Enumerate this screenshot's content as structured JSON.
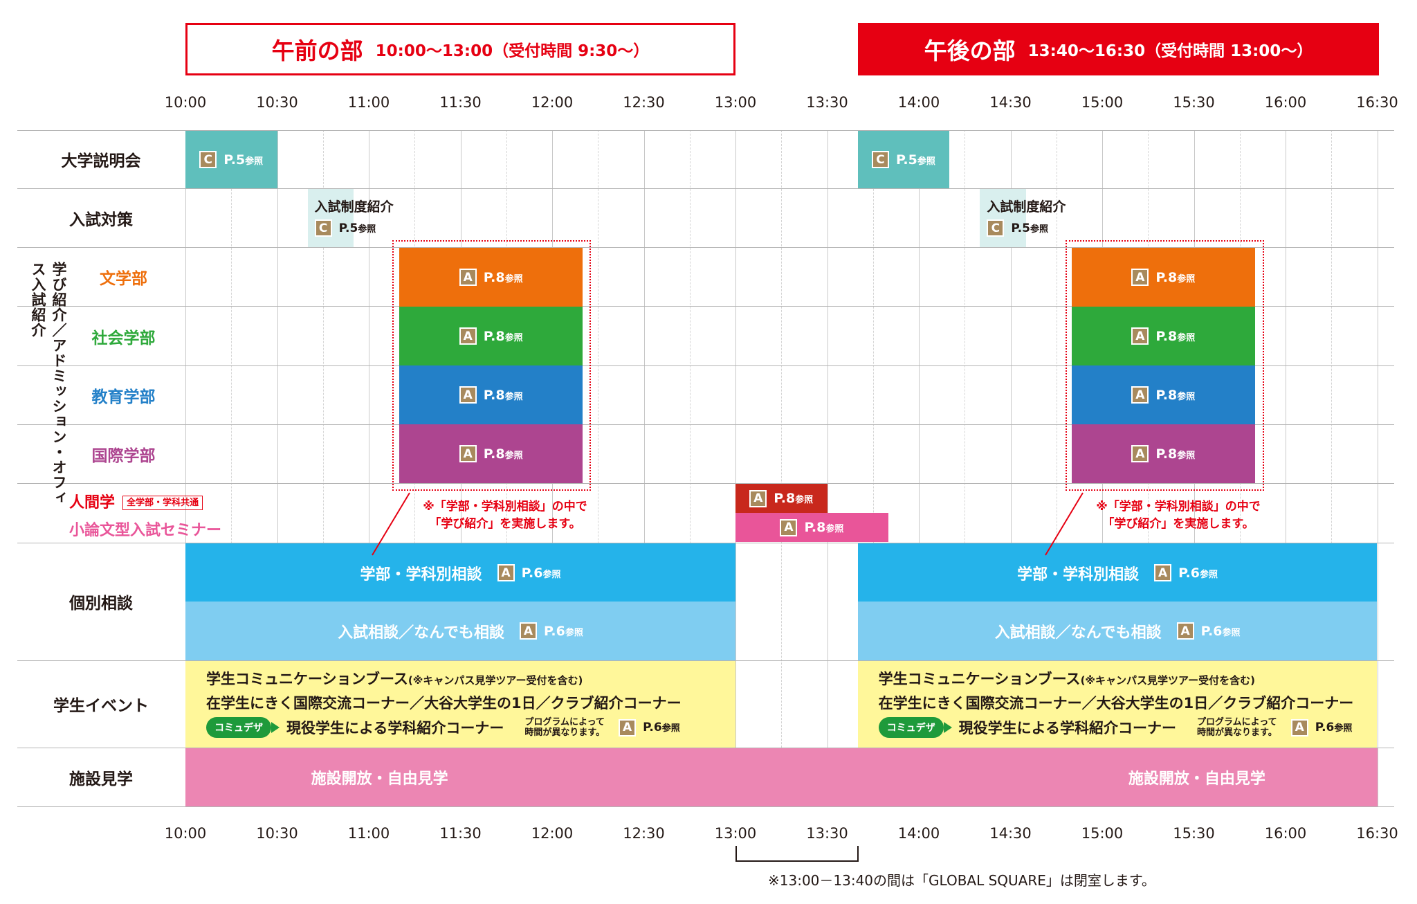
{
  "sessions": {
    "morning": {
      "title": "午前の部",
      "detail": "10:00〜13:00（受付時間 9:30〜）"
    },
    "afternoon": {
      "title": "午後の部",
      "detail": "13:40〜16:30（受付時間 13:00〜）"
    }
  },
  "time_ticks": [
    "10:00",
    "10:30",
    "11:00",
    "11:30",
    "12:00",
    "12:30",
    "13:00",
    "13:30",
    "14:00",
    "14:30",
    "15:00",
    "15:30",
    "16:00",
    "16:30"
  ],
  "row_labels": {
    "orientation": "大学説明会",
    "admission": "入試対策",
    "literature": "文学部",
    "social": "社会学部",
    "education": "教育学部",
    "international": "国際学部",
    "human": "人間学",
    "human_tag": "全学部・学科共通",
    "essay": "小論文型入試セミナー",
    "consult": "個別相談",
    "student_event": "学生イベント",
    "facility": "施設見学",
    "vertical_group": "学び紹介／アドミッション・オフィス入試紹介"
  },
  "colors": {
    "red": "#e60012",
    "teal": "#5fbfbc",
    "teal_light": "#d9efee",
    "orange": "#ee6f0c",
    "green": "#2ea93b",
    "blue": "#2380c8",
    "purple": "#ad4590",
    "dark_red": "#c8281c",
    "pink": "#e95599",
    "sky": "#25b3ea",
    "sky_light": "#7fcdf1",
    "yellow": "#fff79a",
    "facility_pink": "#ec86b3",
    "badge": "#a88a5d"
  },
  "badges": {
    "C": "C",
    "A": "A"
  },
  "refs": {
    "p5": "P.5",
    "p6": "P.6",
    "p8": "P.8",
    "suffix": "参照"
  },
  "admission_block_title": "入試制度紹介",
  "faculty_note": {
    "line1": "※「学部・学科別相談」の中で",
    "line2": "「学び紹介」を実施します。"
  },
  "consult": {
    "dept": "学部・学科別相談",
    "general": "入試相談／なんでも相談"
  },
  "student_event": {
    "line1": "学生コミュニケーションブース",
    "line1_note": "(※キャンパス見学ツアー受付を含む)",
    "line2": "在学生にきく国際交流コーナー／大谷大学生の1日／クラブ紹介コーナー",
    "pill": "コミュデザ",
    "line3": "現役学生による学科紹介コーナー",
    "program_note1": "プログラムによって",
    "program_note2": "時間が異なります。"
  },
  "facility": {
    "label": "施設開放・自由見学"
  },
  "footer_note": "※13:00－13:40の間は「GLOBAL SQUARE」は閉室します。"
}
